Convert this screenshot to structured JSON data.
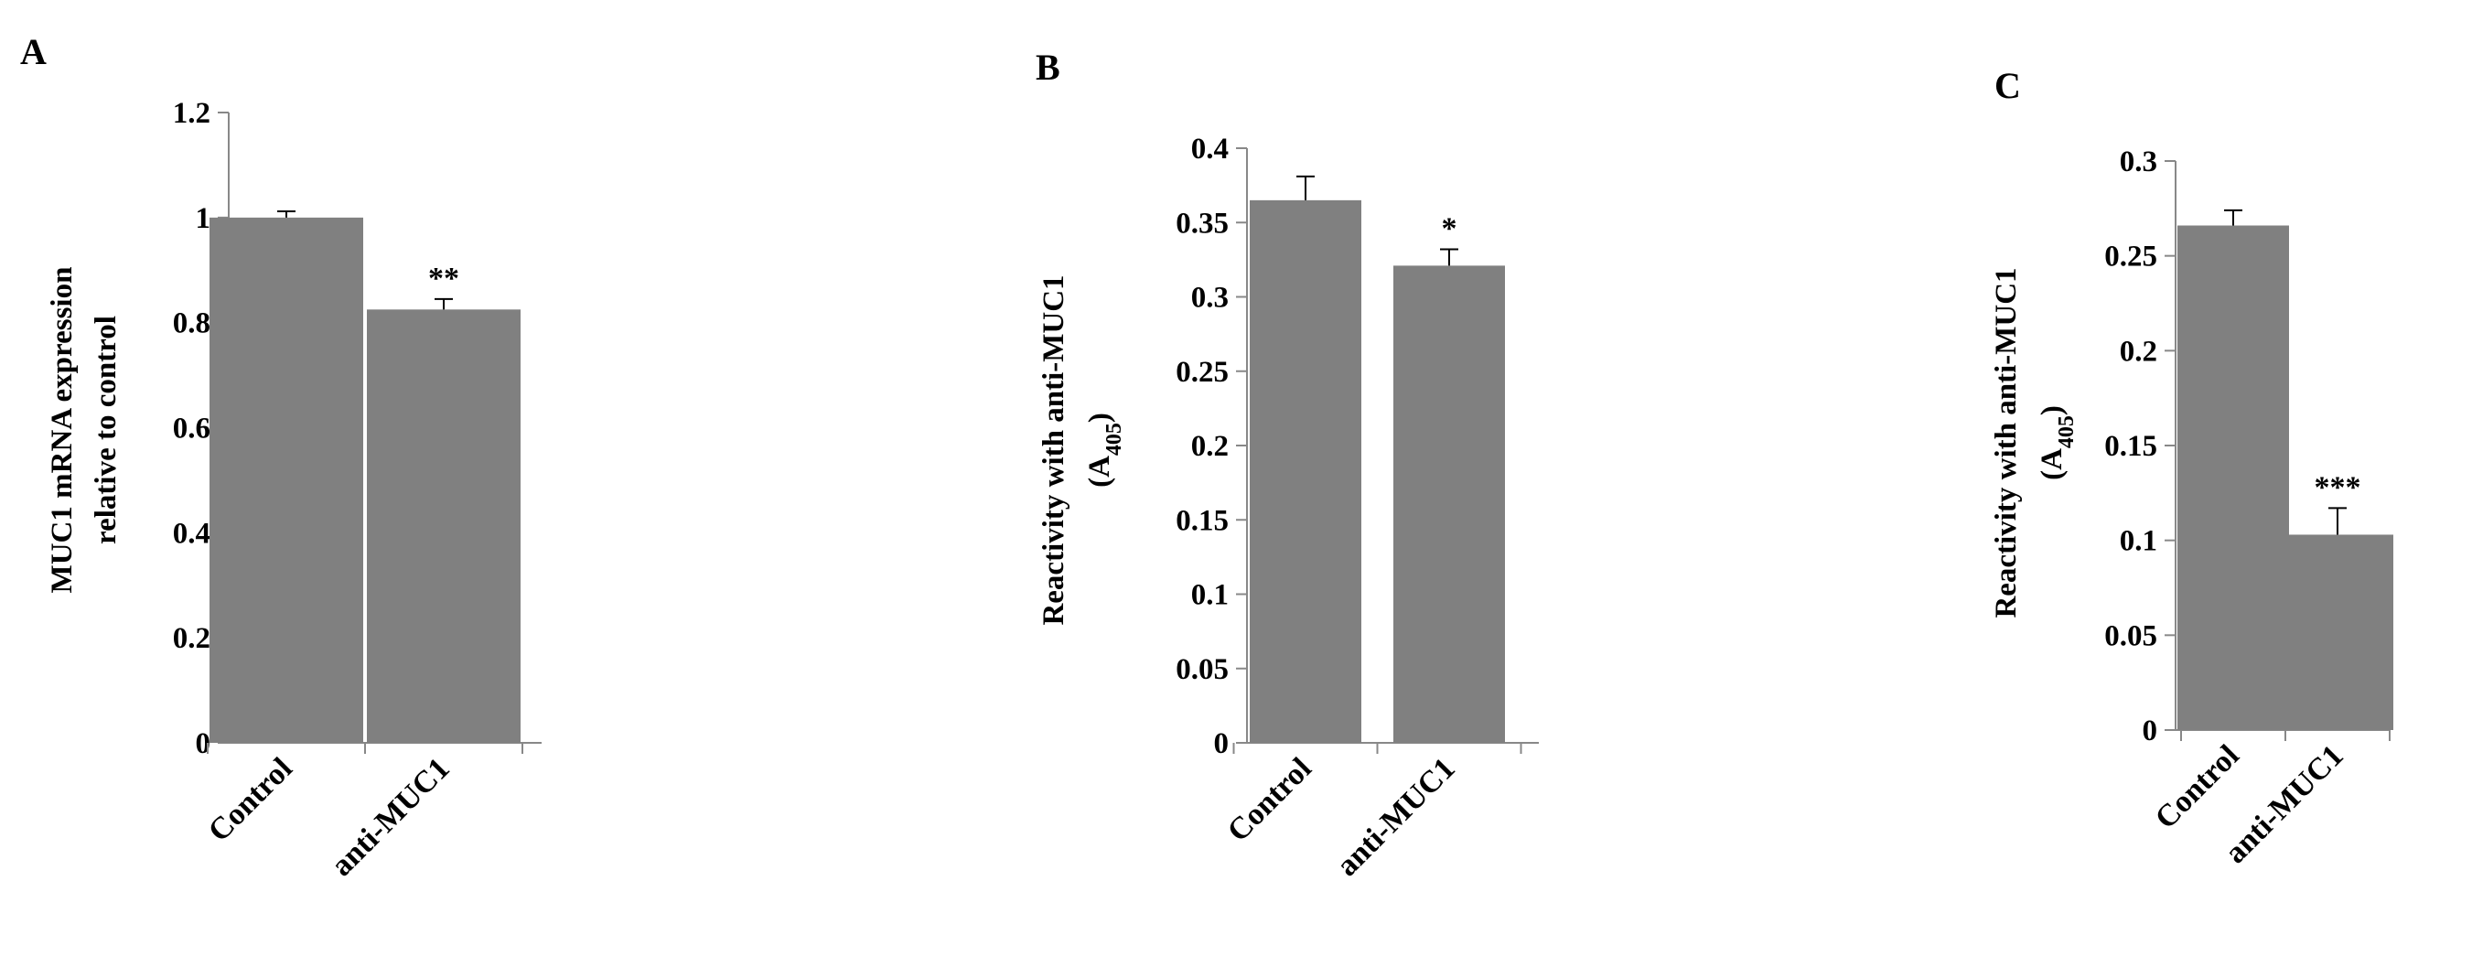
{
  "chart_data": [
    {
      "panel": "A",
      "type": "bar",
      "categories": [
        "Control",
        "anti-MUC1"
      ],
      "values": [
        1.0,
        0.825
      ],
      "errors": [
        0.012,
        0.02
      ],
      "significance": [
        "",
        "**"
      ],
      "ylabel_lines": [
        "MUC1  mRNA expression",
        "relative to control"
      ],
      "ylim": [
        0,
        1.2
      ],
      "yticks": [
        "0",
        "0.2",
        "0.4",
        "0.6",
        "0.8",
        "1",
        "1.2"
      ],
      "bar_color": "#808080"
    },
    {
      "panel": "B",
      "type": "bar",
      "categories": [
        "Control",
        "anti-MUC1"
      ],
      "values": [
        0.365,
        0.321
      ],
      "errors": [
        0.016,
        0.011
      ],
      "significance": [
        "",
        "*"
      ],
      "ylabel_lines": [
        "Reactivity  with  anti-MUC1",
        "(A405)"
      ],
      "ylim": [
        0,
        0.4
      ],
      "yticks": [
        "0",
        "0.05",
        "0.1",
        "0.15",
        "0.2",
        "0.25",
        "0.3",
        "0.35",
        "0.4"
      ],
      "bar_color": "#808080"
    },
    {
      "panel": "C",
      "type": "bar",
      "categories": [
        "Control",
        "anti-MUC1"
      ],
      "values": [
        0.266,
        0.103
      ],
      "errors": [
        0.008,
        0.014
      ],
      "significance": [
        "",
        "***"
      ],
      "ylabel_lines": [
        "Reactivity  with  anti-MUC1",
        "(A405)"
      ],
      "ylim": [
        0,
        0.3
      ],
      "yticks": [
        "0",
        "0.05",
        "0.1",
        "0.15",
        "0.2",
        "0.25",
        "0.3"
      ],
      "bar_color": "#808080"
    }
  ]
}
